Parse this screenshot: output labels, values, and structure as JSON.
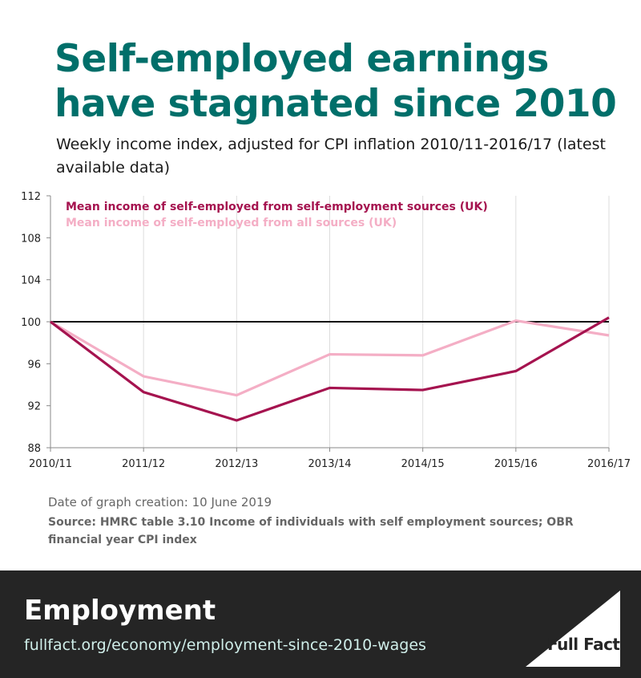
{
  "header": {
    "title": "Self-employed earnings have stagnated since 2010",
    "subtitle": "Weekly income index, adjusted for CPI inflation 2010/11-2016/17 (latest available data)"
  },
  "chart_data": {
    "type": "line",
    "categories": [
      "2010/11",
      "2011/12",
      "2012/13",
      "2013/14",
      "2014/15",
      "2015/16",
      "2016/17"
    ],
    "series": [
      {
        "name": "Mean income of self-employed from self-employment sources (UK)",
        "color": "#a5134f",
        "values": [
          100,
          93.3,
          90.6,
          93.7,
          93.5,
          95.3,
          100.4
        ]
      },
      {
        "name": "Mean income of self-employed from all sources (UK)",
        "color": "#f4aec5",
        "values": [
          100,
          94.8,
          93.0,
          96.9,
          96.8,
          100.1,
          98.7
        ]
      }
    ],
    "reference_line": 100,
    "yticks": [
      88,
      92,
      96,
      100,
      104,
      108,
      112
    ],
    "ylim": [
      88,
      112
    ],
    "legend": "top-left"
  },
  "notes": {
    "date": "Date of graph creation: 10 June 2019",
    "source": "Source: HMRC table 3.10 Income of individuals with self employment sources; OBR financial year CPI index"
  },
  "footer": {
    "topic": "Employment",
    "url": "fullfact.org/economy/employment-since-2010-wages",
    "logo_text": "Full Fact"
  }
}
